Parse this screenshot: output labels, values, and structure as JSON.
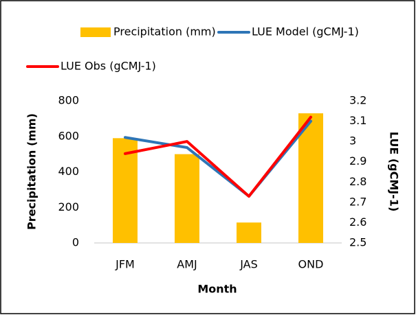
{
  "chart_data": {
    "type": "bar-line",
    "categories": [
      "JFM",
      "AMJ",
      "JAS",
      "OND"
    ],
    "x_label": "Month",
    "y_label": "Precipitation (mm)",
    "y2_label": "LUE (gCMJ-1)",
    "series": [
      {
        "name": "Precipitation (mm)",
        "type": "bar",
        "color": "#ffc000",
        "values": [
          590,
          500,
          115,
          730
        ]
      },
      {
        "name": "LUE Model (gCMJ-1)",
        "type": "line",
        "axis": "y2",
        "color": "#2e75b6",
        "values": [
          3.02,
          2.97,
          2.73,
          3.1
        ]
      },
      {
        "name": "LUE Obs (gCMJ-1)",
        "type": "line",
        "axis": "y2",
        "color": "#ff0000",
        "values": [
          2.94,
          3.0,
          2.73,
          3.12
        ]
      }
    ],
    "ylim": [
      0,
      800
    ],
    "yticks": [
      0,
      200,
      400,
      600,
      800
    ],
    "y2lim": [
      2.5,
      3.2
    ],
    "y2ticks": [
      2.5,
      2.6,
      2.7,
      2.8,
      2.9,
      3,
      3.1,
      3.2
    ],
    "grid": false
  }
}
